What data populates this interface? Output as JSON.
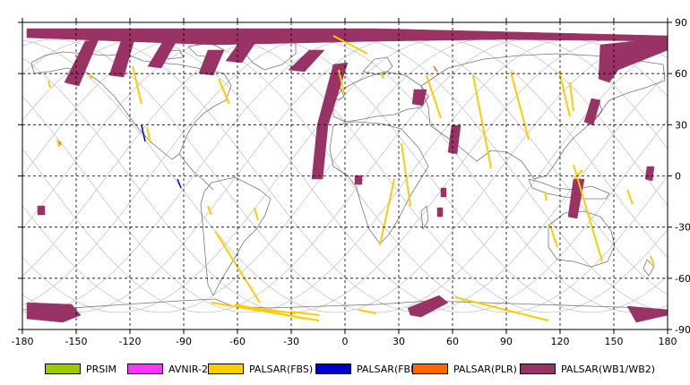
{
  "map": {
    "x_ticks": [
      "-180",
      "-150",
      "-120",
      "-90",
      "-60",
      "-30",
      "0",
      "30",
      "60",
      "90",
      "120",
      "150",
      "180"
    ],
    "y_ticks": [
      "90",
      "60",
      "30",
      "0",
      "-30",
      "-60",
      "-90"
    ],
    "colors": {
      "background": "#ffffff",
      "coastline": "#777777",
      "orbit": "#c8c8c8",
      "grid": "#000000"
    }
  },
  "legend": {
    "items": [
      {
        "label": "PRSIM",
        "color": "#99cc00"
      },
      {
        "label": "AVNIR-2",
        "color": "#ff33ff"
      },
      {
        "label": "PALSAR(FBS)",
        "color": "#ffcc00"
      },
      {
        "label": "PALSAR(FBD)",
        "color": "#0000cc"
      },
      {
        "label": "PALSAR(PLR)",
        "color": "#ff6600"
      },
      {
        "label": "PALSAR(WB1/WB2)",
        "color": "#993366"
      }
    ]
  }
}
